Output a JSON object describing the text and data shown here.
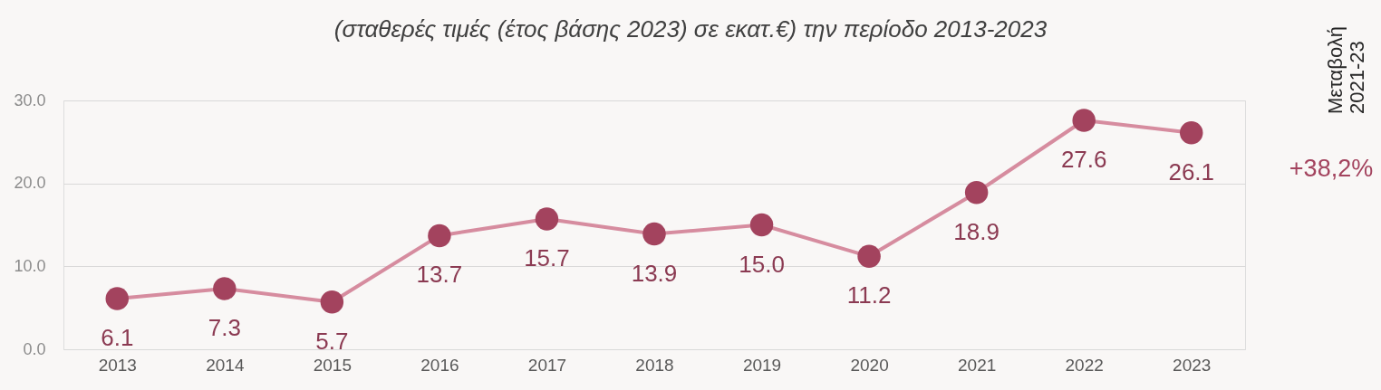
{
  "chart_data": {
    "type": "line",
    "title": "(σταθερές τιμές (έτος βάσης 2023) σε εκατ.€) την περίοδο 2013-2023",
    "categories": [
      "2013",
      "2014",
      "2015",
      "2016",
      "2017",
      "2018",
      "2019",
      "2020",
      "2021",
      "2022",
      "2023"
    ],
    "series": [
      {
        "color": "#d68c9f",
        "colors": [
          "#a3435e",
          "#a3435e",
          "#a3435e",
          "#a3435e",
          "#a3435e",
          "#a3435e",
          "#a3435e",
          "#a3435e",
          "#a3435e",
          "#a3435e",
          "#a3435e"
        ],
        "values": [
          6.1,
          7.3,
          5.7,
          13.7,
          15.7,
          13.9,
          15.0,
          11.2,
          18.9,
          27.6,
          26.1
        ],
        "value_labels": [
          "6.1",
          "7.3",
          "5.7",
          "13.7",
          "15.7",
          "13.9",
          "15.0",
          "11.2",
          "18.9",
          "27.6",
          "26.1"
        ]
      }
    ],
    "marker": "circle",
    "ylim": [
      0,
      30
    ],
    "yticks": [
      {
        "value": 0,
        "label": "0.0"
      },
      {
        "value": 10,
        "label": "10.0"
      },
      {
        "value": 20,
        "label": "20.0"
      },
      {
        "value": 30,
        "label": "30.0"
      }
    ],
    "grid": "y",
    "annotations": [
      "Μεταβολή\n2021-23",
      "+38,2%"
    ]
  }
}
